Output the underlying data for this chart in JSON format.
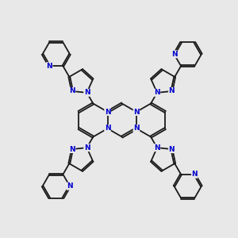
{
  "bg_color": "#e8e8e8",
  "bond_color": "#1a1a1a",
  "atom_color": "#0000cc",
  "bond_width": 1.3,
  "dbl_sep": 0.055,
  "font_size": 6.5,
  "fig_size": [
    3.0,
    3.0
  ],
  "dpi": 100,
  "xlim": [
    -5.2,
    5.2
  ],
  "ylim": [
    -5.5,
    5.5
  ]
}
